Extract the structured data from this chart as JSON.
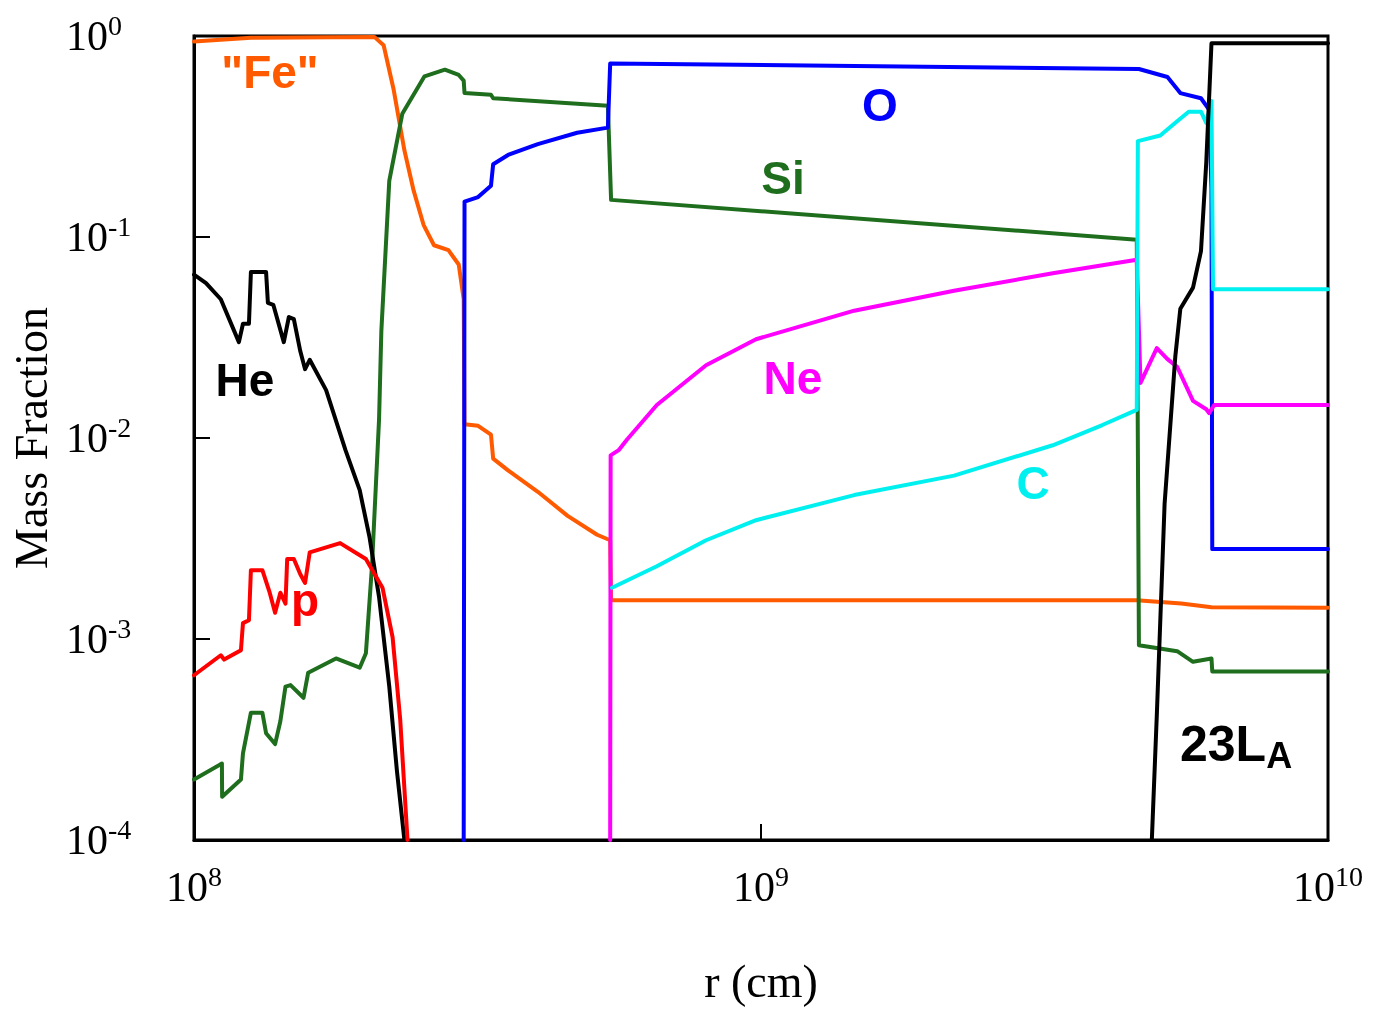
{
  "chart_data": {
    "type": "line",
    "xlabel": "r (cm)",
    "ylabel": "Mass Fraction",
    "log": "xy",
    "marker": "none",
    "line_style": "solid",
    "grid": false,
    "xlim": [
      100000000.0,
      10000000000.0
    ],
    "xticks": [
      {
        "value": 100000000.0,
        "label": "10$^{8}$"
      },
      {
        "value": 1000000000.0,
        "label": "10$^{9}$"
      },
      {
        "value": 10000000000.0,
        "label": "10$^{10}$"
      }
    ],
    "ylim": [
      0.0001,
      1
    ],
    "yticks": [
      {
        "value": 0.0001,
        "label": "10$^{-4}$"
      },
      {
        "value": 0.001,
        "label": "10$^{-3}$"
      },
      {
        "value": 0.01,
        "label": "10$^{-2}$"
      },
      {
        "value": 0.1,
        "label": "10$^{-1}$"
      },
      {
        "value": 1,
        "label": "10$^{0}$"
      }
    ],
    "annotations": [
      "23L$_{A}$"
    ],
    "series": [
      {
        "name": "\"Fe\"",
        "color": "#ff5a00",
        "x": [
          100000000.0,
          126000000.0,
          208000000.0,
          216000000.0,
          225000000.0,
          235000000.0,
          244000000.0,
          254000000.0,
          265000000.0,
          281000000.0,
          293000000.0,
          299000000.0,
          300000000.0,
          317000000.0,
          334000000.0,
          337000000.0,
          358000000.0,
          404000000.0,
          456000000.0,
          514000000.0,
          542000000.0,
          544000000.0,
          4600000000.0,
          5510000000.0,
          6230000000.0,
          10000000000.0
        ],
        "values": [
          0.94,
          0.98,
          0.99,
          0.9,
          0.54,
          0.27,
          0.17,
          0.115,
          0.091,
          0.086,
          0.073,
          0.049,
          0.0117,
          0.0115,
          0.0104,
          0.0079,
          0.0069,
          0.0054,
          0.0041,
          0.0033,
          0.0031,
          0.00156,
          0.00156,
          0.0015,
          0.00144,
          0.00143
        ]
      },
      {
        "name": "Si",
        "color": "#1e6e1e",
        "x": [
          100000000.0,
          112000000.0,
          112100000.0,
          121000000.0,
          122000000.0,
          126000000.0,
          132000000.0,
          134000000.0,
          139000000.0,
          142000000.0,
          145000000.0,
          148000000.0,
          156000000.0,
          159000000.0,
          178000000.0,
          196000000.0,
          201000000.0,
          206000000.0,
          212000000.0,
          214000000.0,
          221000000.0,
          233000000.0,
          255000000.0,
          277000000.0,
          293000000.0,
          299000000.0,
          300000000.0,
          334000000.0,
          337000000.0,
          537000000.0,
          544000000.0,
          4600000000.0,
          4640000000.0,
          5420000000.0,
          5780000000.0,
          6230000000.0,
          6250000000.0,
          10000000000.0
        ],
        "values": [
          0.0002,
          0.00024,
          0.000164,
          0.0002,
          0.00027,
          0.00043,
          0.00043,
          0.00034,
          0.0003,
          0.00039,
          0.00058,
          0.00059,
          0.00051,
          0.00068,
          0.0008,
          0.00072,
          0.00085,
          0.0023,
          0.0123,
          0.034,
          0.19,
          0.41,
          0.63,
          0.68,
          0.64,
          0.6,
          0.52,
          0.51,
          0.49,
          0.45,
          0.153,
          0.097,
          0.00093,
          0.00087,
          0.00077,
          0.0008,
          0.00069,
          0.00069
        ]
      },
      {
        "name": "O",
        "color": "#0000ff",
        "x": [
          299000000.0,
          300000000.0,
          317000000.0,
          334000000.0,
          337000000.0,
          358000000.0,
          404000000.0,
          474000000.0,
          537000000.0,
          542000000.0,
          4640000000.0,
          5210000000.0,
          5490000000.0,
          5970000000.0,
          6170000000.0,
          6230000000.0,
          6250000000.0,
          10000000000.0
        ],
        "values": [
          0.0001,
          0.15,
          0.158,
          0.18,
          0.23,
          0.256,
          0.29,
          0.33,
          0.35,
          0.73,
          0.685,
          0.625,
          0.52,
          0.49,
          0.43,
          0.175,
          0.0028,
          0.0028
        ]
      },
      {
        "name": "Ne",
        "color": "#ff00ff",
        "x": [
          542000000.0,
          543000000.0,
          561000000.0,
          580000000.0,
          655000000.0,
          800000000.0,
          980000000.0,
          1460000000.0,
          2190000000.0,
          3270000000.0,
          4600000000.0,
          4670000000.0,
          4990000000.0,
          5210000000.0,
          5420000000.0,
          5780000000.0,
          6100000000.0,
          6170000000.0,
          6300000000.0,
          10000000000.0
        ],
        "values": [
          0.0001,
          0.0082,
          0.0087,
          0.0098,
          0.0146,
          0.023,
          0.031,
          0.043,
          0.054,
          0.066,
          0.077,
          0.0188,
          0.028,
          0.0247,
          0.0226,
          0.0153,
          0.0139,
          0.0133,
          0.0146,
          0.0146
        ]
      },
      {
        "name": "C",
        "color": "#00f0f0",
        "x": [
          546000000.0,
          655000000.0,
          800000000.0,
          980000000.0,
          1460000000.0,
          2190000000.0,
          3270000000.0,
          4000000000.0,
          4600000000.0,
          4620000000.0,
          5060000000.0,
          5380000000.0,
          5680000000.0,
          5970000000.0,
          6100000000.0,
          6230000000.0,
          6270000000.0,
          10000000000.0
        ],
        "values": [
          0.0018,
          0.0023,
          0.0031,
          0.0039,
          0.0052,
          0.0065,
          0.0092,
          0.0116,
          0.0138,
          0.3,
          0.32,
          0.37,
          0.42,
          0.42,
          0.37,
          0.475,
          0.055,
          0.055
        ]
      },
      {
        "name": "He",
        "color": "#000000",
        "x": [
          100000000.0,
          105000000.0,
          111500000.0,
          120000000.0,
          122000000.0,
          125000000.0,
          126000000.0,
          134000000.0,
          135000000.0,
          138000000.0,
          144000000.0,
          147000000.0,
          150000000.0,
          154000000.0,
          157000000.0,
          160000000.0,
          171000000.0,
          185000000.0,
          196000000.0,
          204000000.0,
          212000000.0,
          221000000.0,
          228000000.0,
          235000000.0,
          1000000000.0,
          4890000000.0,
          4990000000.0,
          5150000000.0,
          5380000000.0,
          5490000000.0,
          5780000000.0,
          5970000000.0,
          6100000000.0,
          6170000000.0,
          6230000000.0,
          10000000000.0
        ],
        "values": [
          0.065,
          0.059,
          0.049,
          0.03,
          0.037,
          0.037,
          0.067,
          0.067,
          0.047,
          0.046,
          0.03,
          0.04,
          0.039,
          0.027,
          0.022,
          0.0245,
          0.0173,
          0.0087,
          0.0055,
          0.0032,
          0.00162,
          0.00058,
          0.00022,
          0.0001,
          null,
          0.0001,
          0.00042,
          0.0047,
          0.0256,
          0.044,
          0.056,
          0.085,
          0.236,
          0.49,
          0.92,
          0.92
        ]
      },
      {
        "name": "p",
        "color": "#ff0000",
        "x": [
          100000000.0,
          111500000.0,
          113000000.0,
          121000000.0,
          122000000.0,
          125000000.0,
          126000000.0,
          132000000.0,
          136000000.0,
          139000000.0,
          142000000.0,
          145000000.0,
          146000000.0,
          150000000.0,
          154000000.0,
          157000000.0,
          160000000.0,
          181000000.0,
          201000000.0,
          215000000.0,
          224000000.0,
          231000000.0,
          238000000.0
        ],
        "values": [
          0.00066,
          0.00083,
          0.00079,
          0.00088,
          0.0012,
          0.00124,
          0.0022,
          0.0022,
          0.0017,
          0.00135,
          0.0017,
          0.0015,
          0.0025,
          0.0025,
          0.0021,
          0.0019,
          0.0027,
          0.003,
          0.0025,
          0.0018,
          0.00102,
          0.0004,
          0.0001
        ]
      }
    ]
  }
}
